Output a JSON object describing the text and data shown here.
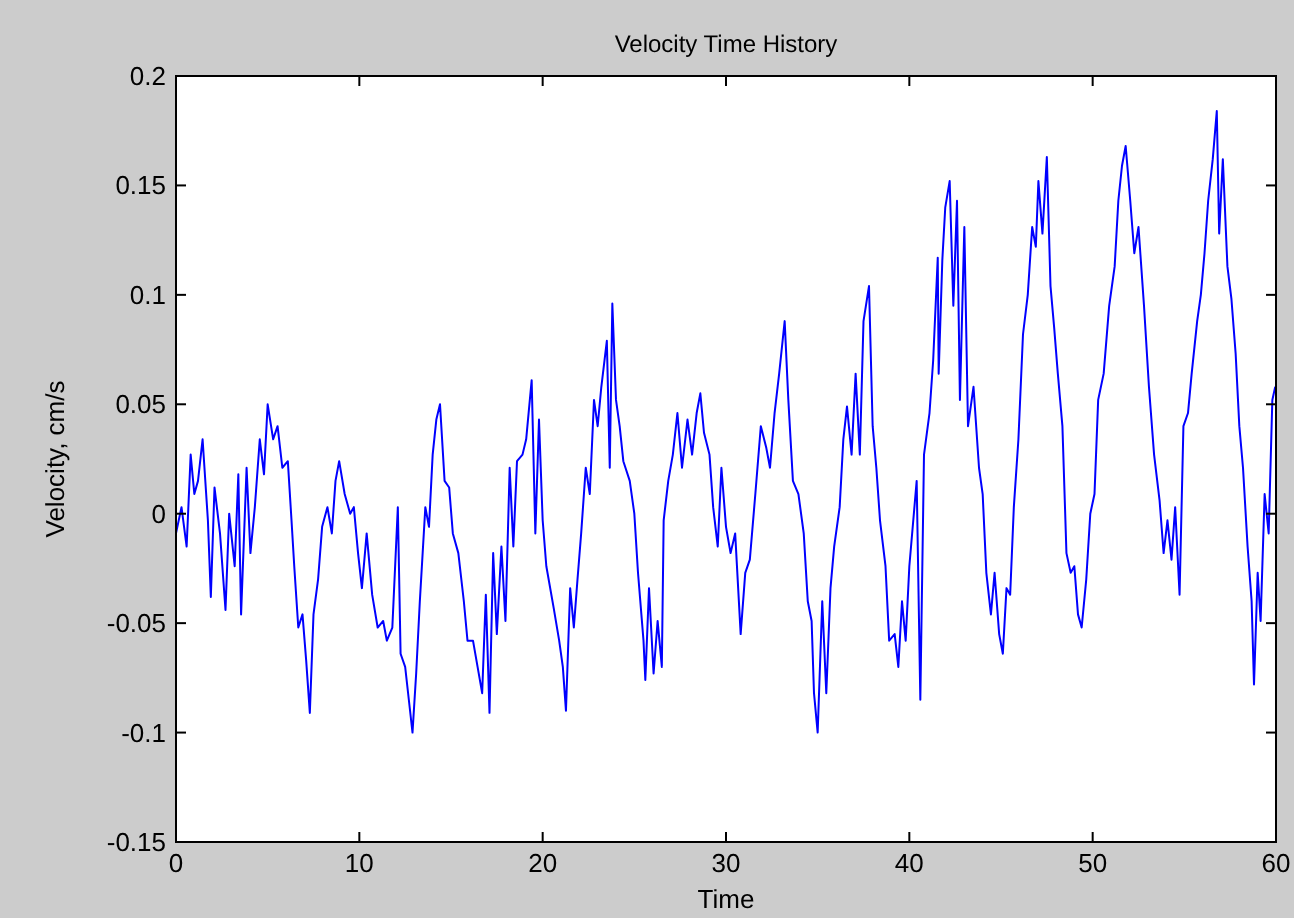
{
  "chart_data": {
    "type": "line",
    "title": "Velocity Time History",
    "xlabel": "Time",
    "ylabel": "Velocity, cm/s",
    "xlim": [
      0,
      60
    ],
    "ylim": [
      -0.15,
      0.2
    ],
    "xticks": [
      0,
      10,
      20,
      30,
      40,
      50,
      60
    ],
    "yticks": [
      -0.15,
      -0.1,
      -0.05,
      0,
      0.05,
      0.1,
      0.15,
      0.2
    ],
    "grid": false,
    "line_style": "solid",
    "marker": "none",
    "x": [
      0,
      0.3,
      0.58,
      0.8,
      1.0,
      1.2,
      1.45,
      1.74,
      1.9,
      2.1,
      2.4,
      2.7,
      2.9,
      3.2,
      3.4,
      3.55,
      3.85,
      4.06,
      4.3,
      4.57,
      4.8,
      5.0,
      5.3,
      5.54,
      5.8,
      6.1,
      6.3,
      6.45,
      6.67,
      6.9,
      7.1,
      7.3,
      7.5,
      7.75,
      7.97,
      8.26,
      8.5,
      8.7,
      8.9,
      9.2,
      9.5,
      9.7,
      9.93,
      10.14,
      10.4,
      10.7,
      11.0,
      11.3,
      11.5,
      11.8,
      12.1,
      12.25,
      12.5,
      12.7,
      12.9,
      13.1,
      13.3,
      13.6,
      13.8,
      14.0,
      14.2,
      14.4,
      14.65,
      14.9,
      15.1,
      15.4,
      15.7,
      15.9,
      16.2,
      16.45,
      16.7,
      16.9,
      17.1,
      17.3,
      17.5,
      17.75,
      17.97,
      18.2,
      18.4,
      18.6,
      18.9,
      19.1,
      19.4,
      19.6,
      19.8,
      20.0,
      20.2,
      20.6,
      20.9,
      21.1,
      21.27,
      21.5,
      21.7,
      21.9,
      22.1,
      22.35,
      22.57,
      22.8,
      23.0,
      23.2,
      23.5,
      23.66,
      23.8,
      24.0,
      24.2,
      24.4,
      24.75,
      25.0,
      25.2,
      25.5,
      25.6,
      25.8,
      26.05,
      26.27,
      26.5,
      26.6,
      26.85,
      27.1,
      27.35,
      27.6,
      27.9,
      28.15,
      28.4,
      28.6,
      28.8,
      29.1,
      29.3,
      29.55,
      29.75,
      30.0,
      30.25,
      30.5,
      30.8,
      31.05,
      31.3,
      31.6,
      31.9,
      32.2,
      32.4,
      32.65,
      32.9,
      33.2,
      33.4,
      33.65,
      33.95,
      34.24,
      34.46,
      34.67,
      34.8,
      35.0,
      35.25,
      35.47,
      35.7,
      35.9,
      36.2,
      36.4,
      36.6,
      36.85,
      37.07,
      37.3,
      37.5,
      37.8,
      38.0,
      38.2,
      38.4,
      38.7,
      38.9,
      39.2,
      39.4,
      39.6,
      39.8,
      40.0,
      40.4,
      40.6,
      40.8,
      41.1,
      41.3,
      41.55,
      41.6,
      41.8,
      41.96,
      42.2,
      42.4,
      42.6,
      42.76,
      43.0,
      43.2,
      43.5,
      43.8,
      44.0,
      44.2,
      44.45,
      44.65,
      44.9,
      45.1,
      45.3,
      45.5,
      45.7,
      45.95,
      46.2,
      46.46,
      46.7,
      46.9,
      47.04,
      47.26,
      47.5,
      47.7,
      47.9,
      48.1,
      48.35,
      48.57,
      48.8,
      49.0,
      49.2,
      49.4,
      49.65,
      49.87,
      50.1,
      50.3,
      50.6,
      50.9,
      51.2,
      51.4,
      51.6,
      51.8,
      52.05,
      52.27,
      52.5,
      52.8,
      53.07,
      53.35,
      53.65,
      53.87,
      54.08,
      54.3,
      54.5,
      54.74,
      54.95,
      55.2,
      55.4,
      55.7,
      55.9,
      56.1,
      56.3,
      56.55,
      56.77,
      56.9,
      57.1,
      57.35,
      57.57,
      57.8,
      58.0,
      58.2,
      58.45,
      58.67,
      58.8,
      59.0,
      59.16,
      59.38,
      59.6,
      59.8,
      59.96
    ],
    "series": [
      {
        "color": "#0000ff",
        "values": [
          -0.009,
          0.003,
          -0.015,
          0.027,
          0.009,
          0.015,
          0.034,
          -0.003,
          -0.038,
          0.012,
          -0.009,
          -0.044,
          0,
          -0.024,
          0.018,
          -0.046,
          0.021,
          -0.018,
          0.003,
          0.034,
          0.018,
          0.05,
          0.034,
          0.04,
          0.021,
          0.024,
          -0.003,
          -0.024,
          -0.052,
          -0.046,
          -0.067,
          -0.091,
          -0.046,
          -0.03,
          -0.006,
          0.003,
          -0.009,
          0.015,
          0.024,
          0.009,
          0,
          0.003,
          -0.018,
          -0.034,
          -0.009,
          -0.037,
          -0.052,
          -0.049,
          -0.058,
          -0.052,
          0.003,
          -0.064,
          -0.07,
          -0.085,
          -0.1,
          -0.073,
          -0.04,
          0.003,
          -0.006,
          0.027,
          0.043,
          0.05,
          0.015,
          0.012,
          -0.009,
          -0.018,
          -0.04,
          -0.058,
          -0.058,
          -0.07,
          -0.082,
          -0.037,
          -0.091,
          -0.018,
          -0.055,
          -0.015,
          -0.049,
          0.021,
          -0.015,
          0.024,
          0.027,
          0.034,
          0.061,
          -0.009,
          0.043,
          -0.003,
          -0.024,
          -0.043,
          -0.058,
          -0.07,
          -0.09,
          -0.034,
          -0.052,
          -0.03,
          -0.009,
          0.021,
          0.009,
          0.052,
          0.04,
          0.058,
          0.079,
          0.021,
          0.096,
          0.052,
          0.04,
          0.024,
          0.015,
          0,
          -0.027,
          -0.058,
          -0.076,
          -0.034,
          -0.073,
          -0.049,
          -0.07,
          -0.003,
          0.015,
          0.027,
          0.046,
          0.021,
          0.043,
          0.027,
          0.046,
          0.055,
          0.037,
          0.027,
          0.003,
          -0.015,
          0.021,
          -0.006,
          -0.018,
          -0.009,
          -0.055,
          -0.027,
          -0.021,
          0.009,
          0.04,
          0.03,
          0.021,
          0.046,
          0.064,
          0.088,
          0.052,
          0.015,
          0.009,
          -0.009,
          -0.04,
          -0.049,
          -0.082,
          -0.1,
          -0.04,
          -0.082,
          -0.034,
          -0.015,
          0.003,
          0.034,
          0.049,
          0.027,
          0.064,
          0.027,
          0.088,
          0.104,
          0.04,
          0.021,
          -0.003,
          -0.024,
          -0.058,
          -0.055,
          -0.07,
          -0.04,
          -0.058,
          -0.024,
          0.015,
          -0.085,
          0.027,
          0.046,
          0.07,
          0.117,
          0.064,
          0.116,
          0.14,
          0.152,
          0.095,
          0.143,
          0.052,
          0.131,
          0.04,
          0.058,
          0.021,
          0.009,
          -0.027,
          -0.046,
          -0.027,
          -0.055,
          -0.064,
          -0.034,
          -0.037,
          0.003,
          0.034,
          0.082,
          0.1,
          0.131,
          0.122,
          0.152,
          0.128,
          0.163,
          0.104,
          0.085,
          0.064,
          0.04,
          -0.018,
          -0.027,
          -0.024,
          -0.046,
          -0.052,
          -0.03,
          0,
          0.009,
          0.052,
          0.064,
          0.095,
          0.113,
          0.143,
          0.159,
          0.168,
          0.143,
          0.119,
          0.131,
          0.095,
          0.058,
          0.027,
          0.006,
          -0.018,
          -0.003,
          -0.021,
          0.003,
          -0.037,
          0.04,
          0.046,
          0.064,
          0.088,
          0.1,
          0.119,
          0.143,
          0.162,
          0.184,
          0.128,
          0.162,
          0.113,
          0.098,
          0.073,
          0.04,
          0.021,
          -0.015,
          -0.04,
          -0.078,
          -0.027,
          -0.049,
          0.009,
          -0.009,
          0.052,
          0.058
        ]
      }
    ]
  }
}
